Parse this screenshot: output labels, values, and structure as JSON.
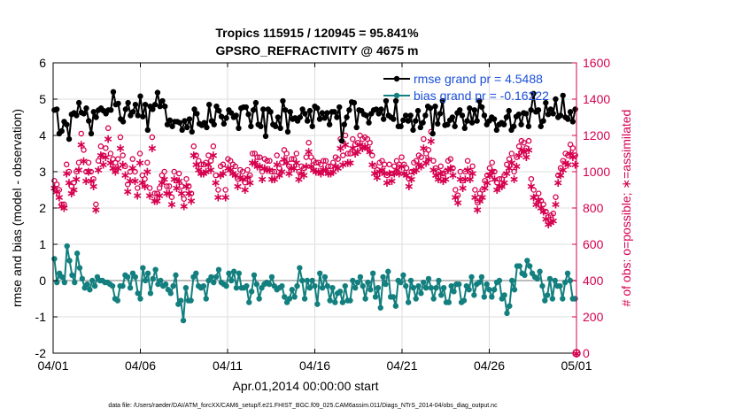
{
  "chart_data": {
    "type": "line",
    "title": "Tropics 115915 / 120945 = 95.841%",
    "subtitle": "GPSRO_REFRACTIVITY @ 4675 m",
    "xlabel": "Apr.01,2014 00:00:00 start",
    "ylabel": "rmse and bias (model - observation)",
    "y2label": "# of obs: o=possible; ∗=assimilated",
    "xlim": [
      0,
      30
    ],
    "ylim": [
      -2,
      6
    ],
    "y2lim": [
      0,
      1600
    ],
    "x_tick_values": [
      0,
      5,
      10,
      15,
      20,
      25,
      30
    ],
    "x_ticks": [
      "04/01",
      "04/06",
      "04/11",
      "04/16",
      "04/21",
      "04/26",
      "05/01"
    ],
    "y_ticks": [
      -2,
      -1,
      0,
      1,
      2,
      3,
      4,
      5,
      6
    ],
    "y2_ticks": [
      0,
      200,
      400,
      600,
      800,
      1000,
      1200,
      1400,
      1600
    ],
    "grid": true,
    "zero_line": 0,
    "legend_position": "top-right",
    "colors": {
      "rmse": "#000000",
      "bias": "#137f7f",
      "obs": "#d6004f",
      "grid": "#dddddd",
      "zero": "#bbbbbb"
    },
    "series": [
      {
        "name": "rmse grand pr = 4.5488",
        "axis": "left",
        "values": [
          4.7,
          4.72,
          4.05,
          4.12,
          4.38,
          4.3,
          3.9,
          4.58,
          4.62,
          4.55,
          4.9,
          4.63,
          4.6,
          4.75,
          4.4,
          4.05,
          4.65,
          4.5,
          4.7,
          4.75,
          4.68,
          4.6,
          4.7,
          4.7,
          5.2,
          4.85,
          4.88,
          4.45,
          4.38,
          4.72,
          4.9,
          4.55,
          4.65,
          4.85,
          4.55,
          5.08,
          4.52,
          4.85,
          4.15,
          4.8,
          4.72,
          4.85,
          5.18,
          4.8,
          4.95,
          4.8,
          4.3,
          4.42,
          4.25,
          4.38,
          4.38,
          4.35,
          4.15,
          4.4,
          4.22,
          4.45,
          4.1,
          4.72,
          4.6,
          4.32,
          4.28,
          4.35,
          4.22,
          4.85,
          4.4,
          4.3,
          4.8,
          4.68,
          4.52,
          4.32,
          4.48,
          4.7,
          4.62,
          4.5,
          4.55,
          4.2,
          4.75,
          4.78,
          4.78,
          4.58,
          4.25,
          4.7,
          4.9,
          4.3,
          4.25,
          4.72,
          3.98,
          4.72,
          4.65,
          4.3,
          4.25,
          4.5,
          4.2,
          4.95,
          4.7,
          4.1,
          4.65,
          4.45,
          4.48,
          4.4,
          4.5,
          4.72,
          4.6,
          4.4,
          4.68,
          4.25,
          4.8,
          4.75,
          4.45,
          4.62,
          4.48,
          4.62,
          4.3,
          4.65,
          4.65,
          4.5,
          4.78,
          3.85,
          4.3,
          4.5,
          4.7,
          4.92,
          4.9,
          4.22,
          4.7,
          4.68,
          4.58,
          4.55,
          4.35,
          4.6,
          4.7,
          4.72,
          4.6,
          4.72,
          4.45,
          4.95,
          4.55,
          4.5,
          4.45,
          4.95,
          4.25,
          4.25,
          4.42,
          4.55,
          4.4,
          4.55,
          4.15,
          4.4,
          4.68,
          4.22,
          4.35,
          4.55,
          4.8,
          4.75,
          4.05,
          4.8,
          4.32,
          4.6,
          4.95,
          4.28,
          4.3,
          4.42,
          4.5,
          4.25,
          4.62,
          4.7,
          4.55,
          4.2,
          4.4,
          4.75,
          4.35,
          4.7,
          4.4,
          4.95,
          4.78,
          4.55,
          4.3,
          4.4,
          4.5,
          4.45,
          4.15,
          4.3,
          4.35,
          4.3,
          4.5,
          4.68,
          4.15,
          4.25,
          4.52,
          4.58,
          4.3,
          4.62,
          4.6,
          4.25,
          4.7,
          5.15,
          4.65,
          4.7,
          4.25,
          4.4,
          4.9,
          4.58,
          4.72,
          4.6,
          5.0,
          4.5,
          4.55,
          5.1,
          4.5,
          4.45,
          4.65,
          4.38,
          4.72
        ]
      },
      {
        "name": "bias grand pr = -0.16222",
        "axis": "left",
        "values": [
          0.6,
          -0.05,
          0.2,
          0.1,
          -0.05,
          0.95,
          0.55,
          0.15,
          -0.05,
          0.75,
          0.35,
          0.05,
          -0.2,
          -0.1,
          -0.25,
          0.0,
          -0.15,
          0.1,
          0.0,
          0.0,
          -0.05,
          -0.05,
          -0.1,
          -0.15,
          -0.5,
          -0.55,
          -0.15,
          -0.15,
          0.15,
          0.1,
          -0.2,
          0.2,
          0.1,
          -0.35,
          -0.5,
          0.35,
          0.0,
          0.2,
          -0.35,
          0.05,
          0.3,
          -0.1,
          0.0,
          -0.15,
          -0.1,
          -0.25,
          -0.35,
          -0.15,
          0.15,
          -0.65,
          -0.55,
          -1.1,
          -0.2,
          -0.55,
          -0.55,
          0.1,
          0.2,
          -0.15,
          -0.2,
          -0.15,
          -0.5,
          0.0,
          0.1,
          -0.05,
          0.1,
          0.3,
          -0.05,
          -0.1,
          -0.15,
          0.2,
          0.0,
          0.25,
          -0.2,
          0.2,
          -0.2,
          -0.2,
          -0.15,
          -0.6,
          -0.3,
          0.15,
          -0.1,
          -0.5,
          -0.2,
          -0.1,
          -0.05,
          -0.1,
          0.1,
          -0.15,
          -0.25,
          -0.2,
          -0.15,
          -0.45,
          -0.6,
          -0.5,
          -0.25,
          -0.45,
          -0.15,
          0.35,
          0.0,
          -0.5,
          0.0,
          -0.2,
          0.0,
          -0.15,
          -0.65,
          0.2,
          -0.2,
          0.1,
          -0.15,
          -0.55,
          -0.2,
          -0.6,
          -0.35,
          -0.3,
          -0.6,
          -0.15,
          -0.55,
          -0.55,
          0.0,
          -0.2,
          -0.05,
          0.1,
          -0.15,
          -0.5,
          -0.05,
          -0.25,
          0.2,
          -0.45,
          -0.2,
          -0.75,
          0.1,
          -0.1,
          0.25,
          -0.45,
          -0.45,
          -0.7,
          0.0,
          -0.05,
          0.15,
          -0.15,
          -0.6,
          0.0,
          -0.2,
          -0.5,
          -0.15,
          -0.35,
          -0.05,
          -0.2,
          0.05,
          -0.2,
          -0.5,
          -0.2,
          0.0,
          -0.4,
          -0.2,
          -0.6,
          -0.6,
          -0.15,
          -0.3,
          -0.1,
          -0.1,
          -0.6,
          -0.55,
          -0.15,
          -0.25,
          0.1,
          -0.4,
          -0.1,
          -0.05,
          0.1,
          -0.45,
          -0.1,
          -0.25,
          -0.45,
          -0.25,
          -0.05,
          0.0,
          -0.5,
          -0.4,
          -0.9,
          -0.7,
          0.0,
          -0.25,
          0.4,
          0.4,
          0.2,
          0.15,
          0.55,
          0.4,
          0.2,
          0.1,
          0.05,
          0.25,
          -0.15,
          -0.55,
          -0.4,
          0.05,
          -0.5,
          0.0,
          -0.15,
          -0.15,
          -0.5,
          -0.05,
          0.2,
          0.0,
          -0.5,
          -0.5
        ]
      },
      {
        "name": "# of obs possible",
        "axis": "right",
        "marker": "o",
        "values": [
          950,
          930,
          900,
          820,
          820,
          1040,
          1000,
          920,
          940,
          1000,
          1050,
          1210,
          1120,
          1000,
          1050,
          1000,
          960,
          820,
          1060,
          1140,
          1090,
          1130,
          1240,
          1100,
          1070,
          1050,
          1070,
          1190,
          1090,
          1030,
          930,
          1000,
          1070,
          1000,
          910,
          1100,
          980,
          960,
          1050,
          910,
          1190,
          880,
          880,
          910,
          980,
          1000,
          920,
          920,
          860,
          1000,
          950,
          990,
          920,
          850,
          960,
          920,
          880,
          1140,
          1090,
          1060,
          1040,
          1040,
          1050,
          1090,
          1060,
          1140,
          980,
          900,
          1030,
          1040,
          900,
          1070,
          1060,
          1040,
          1030,
          960,
          1010,
          1000,
          940,
          1010,
          980,
          1100,
          1100,
          1080,
          1080,
          1000,
          1070,
          1060,
          1060,
          1000,
          1000,
          1090,
          1020,
          1050,
          1120,
          1100,
          1030,
          1070,
          1070,
          1100,
          1000,
          1030,
          1020,
          1080,
          1160,
          1080,
          1060,
          1050,
          1050,
          1040,
          1060,
          1060,
          1030,
          1030,
          1050,
          1080,
          1070,
          1180,
          1090,
          1200,
          1100,
          1100,
          1180,
          1150,
          1160,
          1200,
          1180,
          1190,
          1180,
          1160,
          1090,
          1030,
          1010,
          1050,
          1060,
          1040,
          980,
          1040,
          990,
          1030,
          1060,
          1040,
          1080,
          1040,
          1020,
          960,
          1000,
          1050,
          1060,
          1090,
          1080,
          1180,
          1100,
          1120,
          1220,
          1060,
          1020,
          1000,
          1030,
          990,
          1000,
          1060,
          1070,
          1020,
          900,
          870,
          1000,
          950,
          1000,
          1060,
          1000,
          1030,
          900,
          830,
          880,
          900,
          950,
          980,
          1020,
          1050,
          1000,
          940,
          960,
          960,
          980,
          1040,
          1070,
          1100,
          1000,
          1080,
          1140,
          1170,
          1160,
          1130,
          1170,
          960,
          900,
          860,
          880,
          840,
          820,
          780,
          750,
          760,
          770,
          860,
          980,
          1020,
          1060,
          1100,
          1090,
          1150,
          1130,
          1090
        ]
      },
      {
        "name": "# of obs assimilated",
        "axis": "right",
        "marker": "*",
        "values": [
          910,
          890,
          860,
          810,
          800,
          990,
          940,
          880,
          900,
          960,
          1010,
          1150,
          1060,
          950,
          1000,
          950,
          920,
          790,
          1010,
          1090,
          1040,
          1080,
          1180,
          1050,
          1020,
          1000,
          1020,
          1130,
          1040,
          980,
          890,
          950,
          1020,
          950,
          870,
          1050,
          940,
          920,
          1000,
          870,
          1130,
          840,
          840,
          870,
          940,
          960,
          880,
          880,
          820,
          960,
          910,
          950,
          880,
          810,
          920,
          880,
          840,
          1090,
          1040,
          1010,
          990,
          990,
          1000,
          1040,
          1010,
          1090,
          940,
          860,
          980,
          990,
          860,
          1020,
          1010,
          990,
          980,
          920,
          970,
          960,
          900,
          970,
          940,
          1050,
          1050,
          1030,
          1030,
          960,
          1020,
          1010,
          1010,
          960,
          960,
          1040,
          980,
          1000,
          1070,
          1050,
          990,
          1020,
          1020,
          1050,
          960,
          990,
          980,
          1030,
          1110,
          1030,
          1010,
          1000,
          1000,
          990,
          1010,
          1010,
          990,
          990,
          1000,
          1030,
          1020,
          1130,
          1040,
          1150,
          1050,
          1050,
          1130,
          1100,
          1110,
          1150,
          1130,
          1140,
          1130,
          1110,
          1040,
          990,
          970,
          1000,
          1010,
          990,
          940,
          990,
          950,
          990,
          1010,
          990,
          1030,
          990,
          980,
          920,
          960,
          1000,
          1010,
          1040,
          1030,
          1130,
          1050,
          1070,
          1170,
          1010,
          980,
          960,
          990,
          950,
          960,
          1010,
          1020,
          980,
          860,
          830,
          960,
          910,
          960,
          1010,
          960,
          990,
          860,
          790,
          840,
          860,
          910,
          940,
          980,
          1000,
          960,
          900,
          920,
          920,
          940,
          990,
          1020,
          1050,
          960,
          1030,
          1090,
          1120,
          1110,
          1080,
          1120,
          920,
          860,
          820,
          840,
          800,
          780,
          740,
          710,
          720,
          730,
          820,
          940,
          980,
          1010,
          1050,
          1040,
          1100,
          1080,
          1040
        ]
      }
    ],
    "end_marker": {
      "x": 30,
      "y2": 0,
      "label": "possible/assimilated at end"
    }
  },
  "footer": "data file: /Users/raeder/DAI/ATM_forcXX/CAM6_setup/f.e21.FHIST_BGC.f09_025.CAM6assim.011/Diags_NTrS_2014-04/obs_diag_output.nc"
}
